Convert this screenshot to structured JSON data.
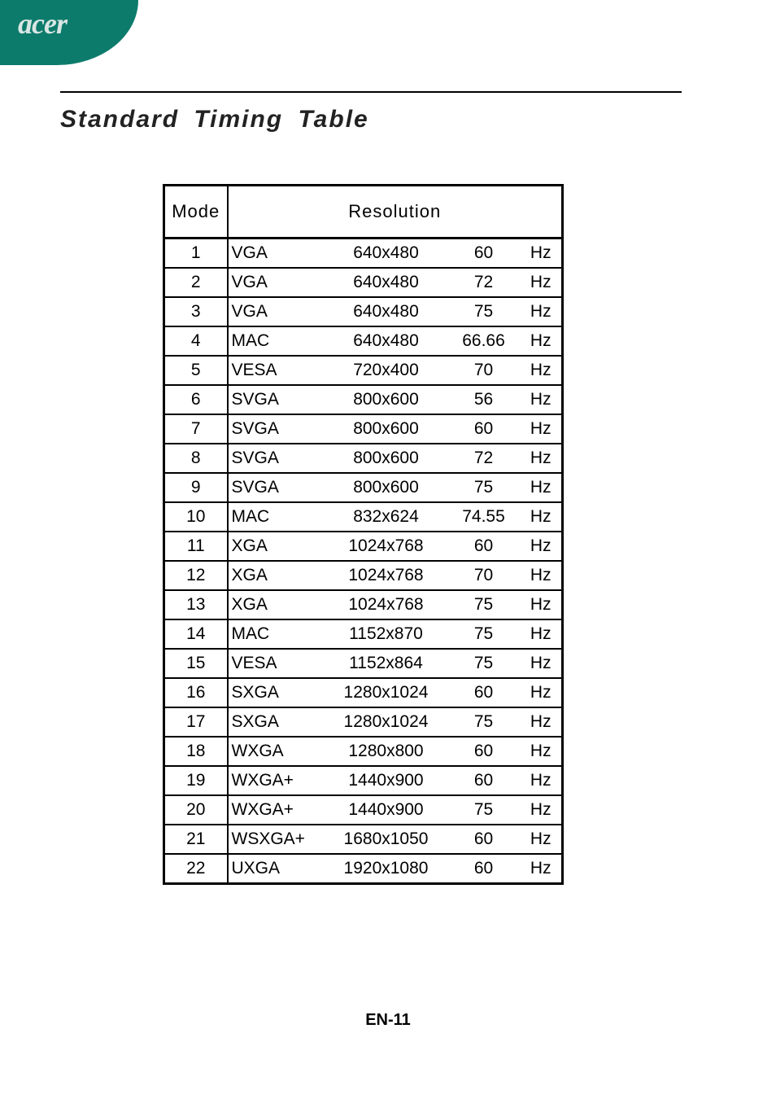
{
  "brand": "acer",
  "title": "Standard Timing Table",
  "footer": "EN-11",
  "headers": {
    "mode": "Mode",
    "resolution": "Resolution"
  },
  "unit": "Hz",
  "rows": [
    {
      "n": 1,
      "std": "VGA",
      "px": "640x480",
      "freq": "60"
    },
    {
      "n": 2,
      "std": "VGA",
      "px": "640x480",
      "freq": "72"
    },
    {
      "n": 3,
      "std": "VGA",
      "px": "640x480",
      "freq": "75"
    },
    {
      "n": 4,
      "std": "MAC",
      "px": "640x480",
      "freq": "66.66"
    },
    {
      "n": 5,
      "std": "VESA",
      "px": "720x400",
      "freq": "70"
    },
    {
      "n": 6,
      "std": "SVGA",
      "px": "800x600",
      "freq": "56"
    },
    {
      "n": 7,
      "std": "SVGA",
      "px": "800x600",
      "freq": "60"
    },
    {
      "n": 8,
      "std": "SVGA",
      "px": "800x600",
      "freq": "72"
    },
    {
      "n": 9,
      "std": "SVGA",
      "px": "800x600",
      "freq": "75"
    },
    {
      "n": 10,
      "std": "MAC",
      "px": "832x624",
      "freq": "74.55"
    },
    {
      "n": 11,
      "std": "XGA",
      "px": "1024x768",
      "freq": "60"
    },
    {
      "n": 12,
      "std": "XGA",
      "px": "1024x768",
      "freq": "70"
    },
    {
      "n": 13,
      "std": "XGA",
      "px": "1024x768",
      "freq": "75"
    },
    {
      "n": 14,
      "std": "MAC",
      "px": "1152x870",
      "freq": "75"
    },
    {
      "n": 15,
      "std": "VESA",
      "px": "1152x864",
      "freq": "75"
    },
    {
      "n": 16,
      "std": "SXGA",
      "px": "1280x1024",
      "freq": "60"
    },
    {
      "n": 17,
      "std": "SXGA",
      "px": "1280x1024",
      "freq": "75"
    },
    {
      "n": 18,
      "std": "WXGA",
      "px": "1280x800",
      "freq": "60"
    },
    {
      "n": 19,
      "std": "WXGA+",
      "px": "1440x900",
      "freq": "60"
    },
    {
      "n": 20,
      "std": "WXGA+",
      "px": "1440x900",
      "freq": "75"
    },
    {
      "n": 21,
      "std": "WSXGA+",
      "px": "1680x1050",
      "freq": "60"
    },
    {
      "n": 22,
      "std": "UXGA",
      "px": "1920x1080",
      "freq": "60"
    }
  ],
  "colors": {
    "brand_bg": "#0d7b6c",
    "brand_fg": "#d9e6e3",
    "text": "#000000",
    "background": "#ffffff",
    "border": "#000000"
  }
}
